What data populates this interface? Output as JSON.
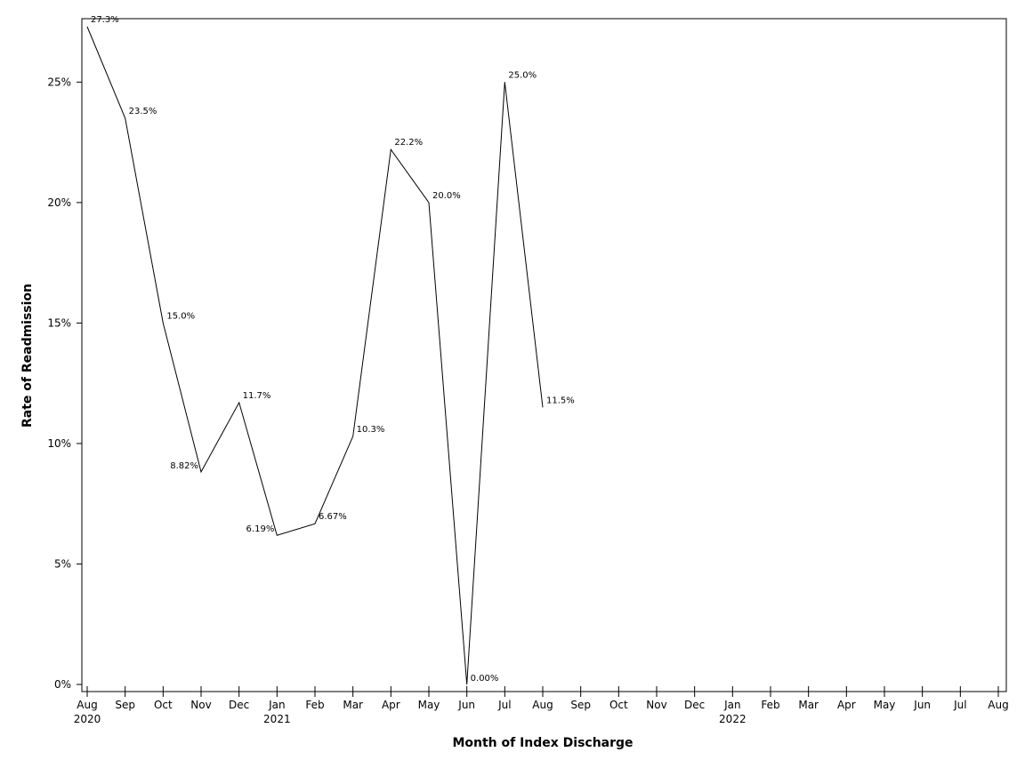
{
  "chart_data": {
    "type": "line",
    "title": "",
    "xlabel": "Month of Index Discharge",
    "ylabel": "Rate of Readmission",
    "x": [
      "2020-08",
      "2020-09",
      "2020-10",
      "2020-11",
      "2020-12",
      "2021-01",
      "2021-02",
      "2021-03",
      "2021-04",
      "2021-05",
      "2021-06",
      "2021-07",
      "2021-08"
    ],
    "values": [
      27.3,
      23.5,
      15.0,
      8.82,
      11.7,
      6.19,
      6.67,
      10.3,
      22.2,
      20.0,
      0.0,
      25.0,
      11.5
    ],
    "point_labels": [
      "27.3%",
      "23.5%",
      "15.0%",
      "8.82%",
      "11.7%",
      "6.19%",
      "6.67%",
      "10.3%",
      "22.2%",
      "20.0%",
      "0.00%",
      "25.0%",
      "11.5%"
    ],
    "xlim": [
      "2020-08",
      "2022-08"
    ],
    "ylim": [
      0,
      27.3
    ],
    "y_ticks": [
      0,
      5,
      10,
      15,
      20,
      25
    ],
    "y_tick_labels": [
      "0%",
      "5%",
      "10%",
      "15%",
      "20%",
      "25%"
    ],
    "x_ticks": [
      "2020-08",
      "2020-09",
      "2020-10",
      "2020-11",
      "2020-12",
      "2021-01",
      "2021-02",
      "2021-03",
      "2021-04",
      "2021-05",
      "2021-06",
      "2021-07",
      "2021-08",
      "2021-09",
      "2021-10",
      "2021-11",
      "2021-12",
      "2022-01",
      "2022-02",
      "2022-03",
      "2022-04",
      "2022-05",
      "2022-06",
      "2022-07",
      "2022-08"
    ],
    "x_tick_labels": [
      "Aug",
      "Sep",
      "Oct",
      "Nov",
      "Dec",
      "Jan",
      "Feb",
      "Mar",
      "Apr",
      "May",
      "Jun",
      "Jul",
      "Aug",
      "Sep",
      "Oct",
      "Nov",
      "Dec",
      "Jan",
      "Feb",
      "Mar",
      "Apr",
      "May",
      "Jun",
      "Jul",
      "Aug"
    ],
    "x_year_labels": [
      {
        "month": "2020-08",
        "label": "2020"
      },
      {
        "month": "2021-01",
        "label": "2021"
      },
      {
        "month": "2022-01",
        "label": "2022"
      }
    ],
    "grid": false,
    "legend": "none",
    "line_color": "#000000"
  }
}
